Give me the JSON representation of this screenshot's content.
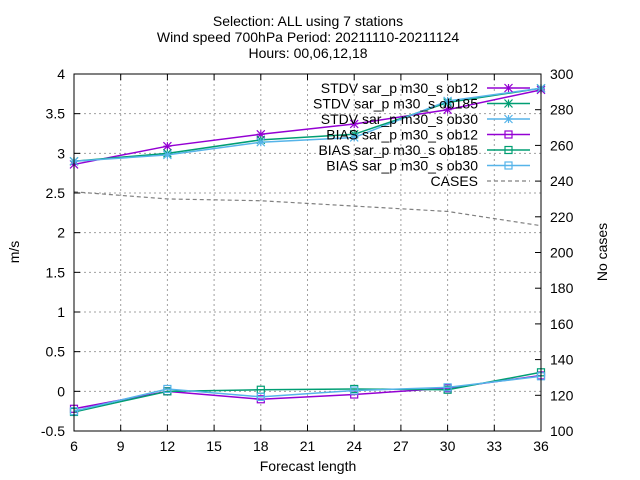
{
  "chart_data": {
    "type": "line",
    "title_lines": [
      "Selection: ALL using     7 stations",
      "Wind speed 700hPa   Period: 20211110-20211124",
      "Hours: 00,06,12,18"
    ],
    "xlabel": "Forecast length",
    "ylabel": "m/s",
    "y2label": "No cases",
    "x": [
      6,
      12,
      18,
      24,
      30,
      36
    ],
    "xticks": [
      6,
      9,
      12,
      15,
      18,
      21,
      24,
      27,
      30,
      33,
      36
    ],
    "xlim": [
      6,
      36
    ],
    "ylim": [
      -0.5,
      4
    ],
    "yticks": [
      -0.5,
      0,
      0.5,
      1,
      1.5,
      2,
      2.5,
      3,
      3.5,
      4
    ],
    "y2lim": [
      100,
      300
    ],
    "y2ticks": [
      100,
      120,
      140,
      160,
      180,
      200,
      220,
      240,
      260,
      280,
      300
    ],
    "grid": true,
    "legend_position": "top-right",
    "series": [
      {
        "name": "STDV sar_p m30_s ob12",
        "color": "#9400d3",
        "marker": "star",
        "axis": "y1",
        "values": [
          2.86,
          3.09,
          3.24,
          3.37,
          3.55,
          3.8
        ]
      },
      {
        "name": "STDV sar_p m30_s ob185",
        "color": "#009e73",
        "marker": "star",
        "axis": "y1",
        "values": [
          2.9,
          3.0,
          3.17,
          3.24,
          3.64,
          3.82
        ]
      },
      {
        "name": "STDV sar_p m30_s ob30",
        "color": "#56b4e9",
        "marker": "star",
        "axis": "y1",
        "values": [
          2.9,
          2.98,
          3.14,
          3.2,
          3.66,
          3.82
        ]
      },
      {
        "name": "BIAS sar_p m30_s ob12",
        "color": "#9400d3",
        "marker": "square",
        "axis": "y1",
        "values": [
          -0.22,
          0.0,
          -0.1,
          -0.04,
          0.04,
          0.2
        ]
      },
      {
        "name": "BIAS sar_p m30_s ob185",
        "color": "#009e73",
        "marker": "square",
        "axis": "y1",
        "values": [
          -0.26,
          0.0,
          0.02,
          0.03,
          0.02,
          0.24
        ]
      },
      {
        "name": "BIAS sar_p m30_s ob30",
        "color": "#56b4e9",
        "marker": "square",
        "axis": "y1",
        "values": [
          -0.25,
          0.03,
          -0.07,
          0.01,
          0.05,
          0.19
        ]
      },
      {
        "name": "CASES",
        "color": "#808080",
        "marker": "none",
        "dashed": true,
        "axis": "y2",
        "values": [
          234,
          230,
          229,
          226,
          223,
          215
        ]
      }
    ]
  }
}
